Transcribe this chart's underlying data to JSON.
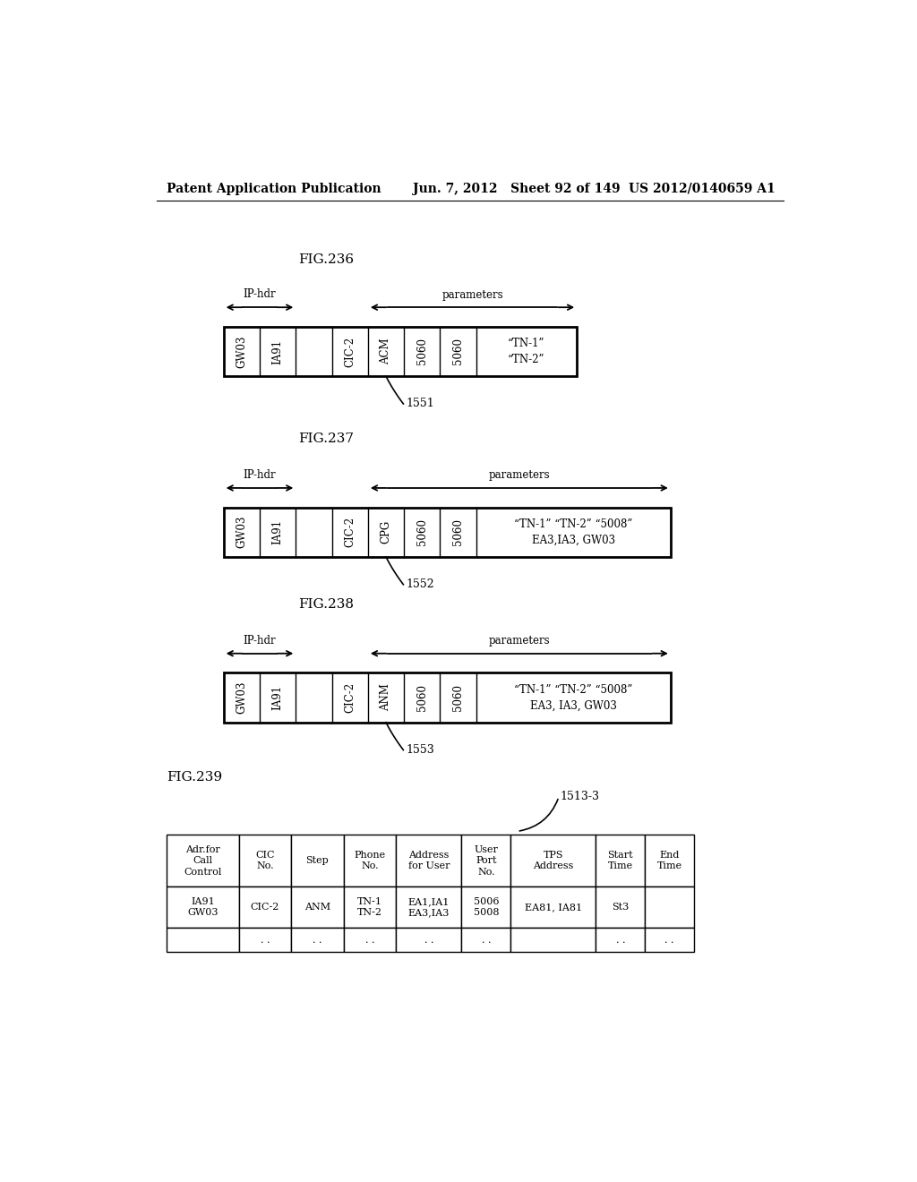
{
  "bg_color": "#ffffff",
  "header_text_left": "Patent Application Publication",
  "header_text_mid": "Jun. 7, 2012   Sheet 92 of 149",
  "header_text_right": "US 2012/0140659 A1",
  "fig236": {
    "title": "FIG.236",
    "ip_hdr_label": "IP-hdr",
    "params_label": "parameters",
    "cells": [
      "GW03",
      "IA91",
      "",
      "CIC-2",
      "ACM",
      "5060",
      "5060"
    ],
    "last_cell_lines": [
      "“TN-1”",
      "“TN-2”"
    ],
    "label": "1551"
  },
  "fig237": {
    "title": "FIG.237",
    "ip_hdr_label": "IP-hdr",
    "params_label": "parameters",
    "cells": [
      "GW03",
      "IA91",
      "",
      "CIC-2",
      "CPG",
      "5060",
      "5060"
    ],
    "last_cell_lines": [
      "“TN-1” “TN-2” “5008”",
      "EA3,IA3, GW03"
    ],
    "label": "1552"
  },
  "fig238": {
    "title": "FIG.238",
    "ip_hdr_label": "IP-hdr",
    "params_label": "parameters",
    "cells": [
      "GW03",
      "IA91",
      "",
      "CIC-2",
      "ANM",
      "5060",
      "5060"
    ],
    "last_cell_lines": [
      "“TN-1” “TN-2” “5008”",
      "EA3, IA3, GW03"
    ],
    "label": "1553"
  },
  "fig239": {
    "title": "FIG.239",
    "ref_label": "1513-3",
    "col_headers": [
      "Adr.for\nCall\nControl",
      "CIC\nNo.",
      "Step",
      "Phone\nNo.",
      "Address\nfor User",
      "User\nPort\nNo.",
      "TPS\nAddress",
      "Start\nTime",
      "End\nTime"
    ],
    "col_widths_norm": [
      1.1,
      0.8,
      0.8,
      0.8,
      1.0,
      0.75,
      1.3,
      0.75,
      0.75
    ],
    "row1": [
      "IA91\nGW03",
      "CIC-2",
      "ANM",
      "TN-1\nTN-2",
      "EA1,IA1\nEA3,IA3",
      "5006\n5008",
      "EA81, IA81",
      "St3",
      ""
    ],
    "row2": [
      "",
      ". .",
      ". .",
      ". .",
      ". .",
      ". .",
      "",
      ". .",
      ". ."
    ]
  }
}
